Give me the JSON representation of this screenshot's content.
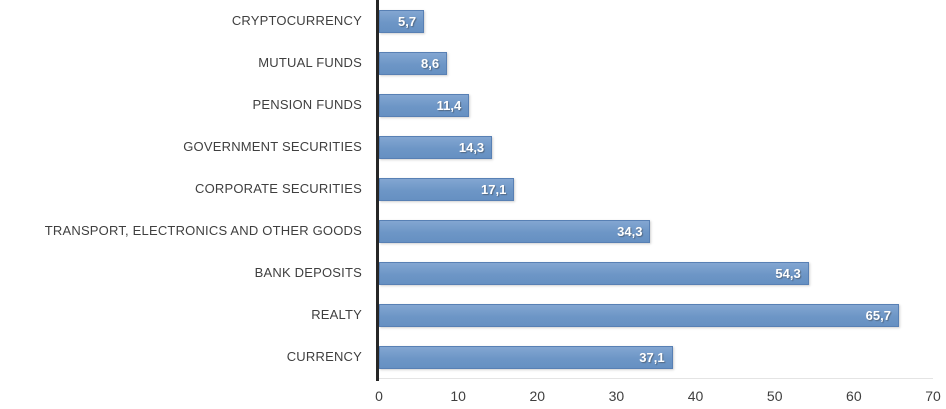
{
  "chart_data": {
    "type": "bar",
    "orientation": "horizontal",
    "title": "",
    "xlabel": "",
    "ylabel": "",
    "categories": [
      "CRYPTOCURRENCY",
      "MUTUAL FUNDS",
      "PENSION FUNDS",
      "GOVERNMENT SECURITIES",
      "CORPORATE SECURITIES",
      "TRANSPORT, ELECTRONICS AND OTHER GOODS",
      "BANK DEPOSITS",
      "REALTY",
      "CURRENCY"
    ],
    "values": [
      5.7,
      8.6,
      11.4,
      14.3,
      17.1,
      34.3,
      54.3,
      65.7,
      37.1
    ],
    "value_labels": [
      "5,7",
      "8,6",
      "11,4",
      "14,3",
      "17,1",
      "34,3",
      "54,3",
      "65,7",
      "37,1"
    ],
    "xlim": [
      0,
      70
    ],
    "x_ticks": [
      "0",
      "10",
      "20",
      "30",
      "40",
      "50",
      "60",
      "70"
    ],
    "grid": false,
    "legend": false,
    "colors": {
      "background": "#ffffff",
      "bar_fill_top": "#83a6d2",
      "bar_fill_mid": "#6d96c6",
      "bar_fill_bottom": "#6690c2",
      "bar_border": "#5880b4",
      "axis_line": "#262626",
      "category_text": "#3f3f3f",
      "tick_text": "#3f3f3f",
      "value_text": "#ffffff"
    }
  }
}
